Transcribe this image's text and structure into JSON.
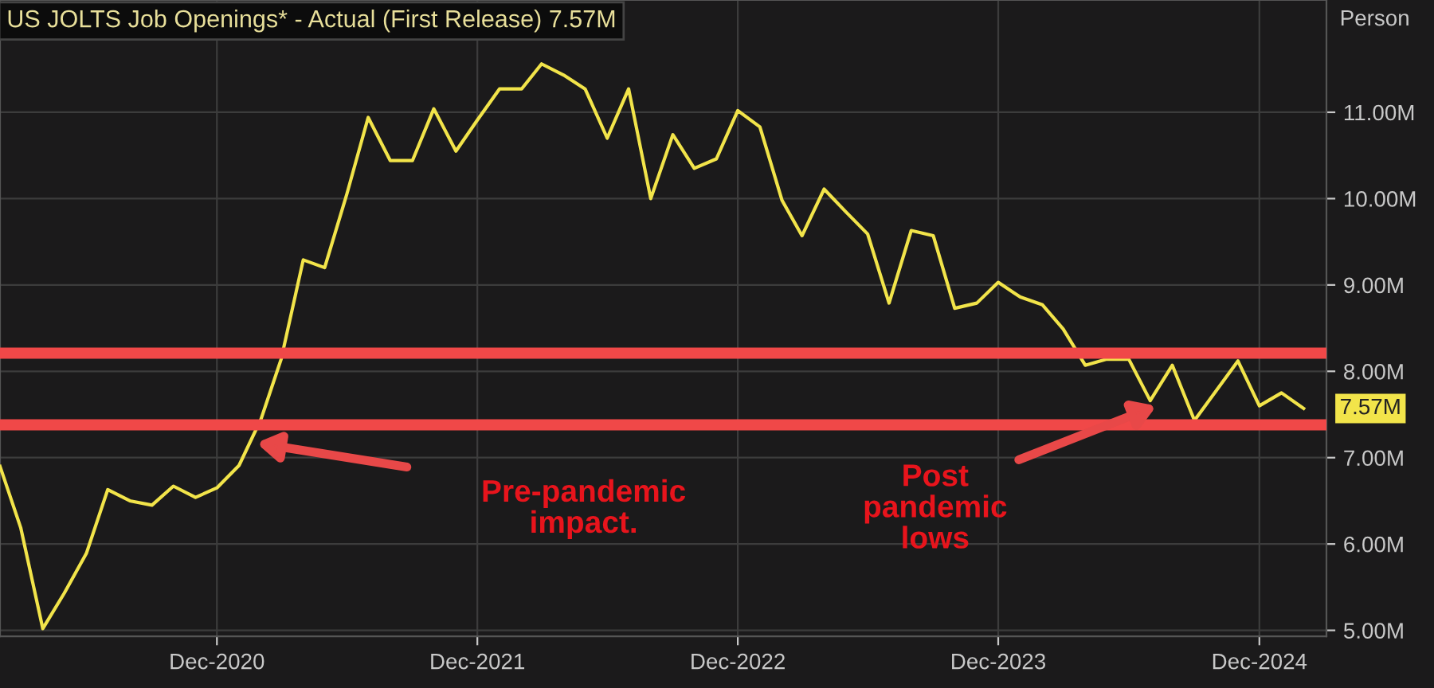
{
  "chart_data": {
    "type": "line",
    "title": "US JOLTS Job Openings* - Actual (First Release) 7.57M",
    "ylabel": "Person",
    "x": [
      "2020-02",
      "2020-03",
      "2020-04",
      "2020-05",
      "2020-06",
      "2020-07",
      "2020-08",
      "2020-09",
      "2020-10",
      "2020-11",
      "2020-12",
      "2021-01",
      "2021-02",
      "2021-03",
      "2021-04",
      "2021-05",
      "2021-06",
      "2021-07",
      "2021-08",
      "2021-09",
      "2021-10",
      "2021-11",
      "2021-12",
      "2022-01",
      "2022-02",
      "2022-03",
      "2022-04",
      "2022-05",
      "2022-06",
      "2022-07",
      "2022-08",
      "2022-09",
      "2022-10",
      "2022-11",
      "2022-12",
      "2023-01",
      "2023-02",
      "2023-03",
      "2023-04",
      "2023-05",
      "2023-06",
      "2023-07",
      "2023-08",
      "2023-09",
      "2023-10",
      "2023-11",
      "2023-12",
      "2024-01",
      "2024-02",
      "2024-03",
      "2024-04",
      "2024-05",
      "2024-06",
      "2024-07",
      "2024-08",
      "2024-09",
      "2024-10",
      "2024-11",
      "2024-12",
      "2025-01",
      "2025-02"
    ],
    "series": [
      {
        "color": "#f2e44a",
        "values": [
          6.9,
          6.19,
          5.02,
          5.43,
          5.89,
          6.63,
          6.5,
          6.45,
          6.67,
          6.54,
          6.65,
          6.91,
          7.45,
          8.14,
          9.29,
          9.2,
          10.05,
          10.94,
          10.44,
          10.44,
          11.04,
          10.55,
          10.91,
          11.27,
          11.27,
          11.56,
          11.43,
          11.27,
          10.7,
          11.27,
          10.0,
          10.74,
          10.35,
          10.46,
          11.02,
          10.83,
          9.98,
          9.57,
          10.11,
          9.85,
          9.59,
          8.79,
          9.63,
          9.57,
          8.73,
          8.79,
          9.03,
          8.86,
          8.77,
          8.49,
          8.07,
          8.14,
          8.14,
          7.66,
          8.07,
          7.43,
          7.77,
          8.12,
          7.6,
          7.75,
          7.57
        ],
        "value_labels": [
          null,
          null,
          null,
          null,
          null,
          null,
          null,
          null,
          null,
          null,
          null,
          null,
          null,
          null,
          null,
          null,
          null,
          null,
          null,
          null,
          null,
          null,
          null,
          null,
          null,
          null,
          null,
          null,
          null,
          null,
          null,
          null,
          null,
          null,
          null,
          null,
          null,
          null,
          null,
          null,
          null,
          null,
          null,
          null,
          null,
          null,
          null,
          null,
          null,
          null,
          null,
          null,
          null,
          null,
          null,
          null,
          null,
          null,
          null,
          null,
          "7.57M"
        ]
      }
    ],
    "xlim": [
      "2020-02-01",
      "2025-03-05"
    ],
    "xticks": [
      {
        "value": "2020-12",
        "label": "Dec-2020"
      },
      {
        "value": "2021-12",
        "label": "Dec-2021"
      },
      {
        "value": "2022-12",
        "label": "Dec-2022"
      },
      {
        "value": "2023-12",
        "label": "Dec-2023"
      },
      {
        "value": "2024-12",
        "label": "Dec-2024"
      }
    ],
    "ylim": [
      4.93,
      12.3
    ],
    "yticks": [
      {
        "value": 5,
        "label": "5.00M"
      },
      {
        "value": 6,
        "label": "6.00M"
      },
      {
        "value": 7,
        "label": "7.00M"
      },
      {
        "value": 8,
        "label": "8.00M"
      },
      {
        "value": 9,
        "label": "9.00M"
      },
      {
        "value": 10,
        "label": "10.00M"
      },
      {
        "value": 11,
        "label": "11.00M"
      }
    ],
    "ref_lines": [
      {
        "axis": "y",
        "value": 8.21,
        "color": "#f04848"
      },
      {
        "axis": "y",
        "value": 7.38,
        "color": "#f04848"
      }
    ],
    "annotations": [
      "Pre-pandemic impact.",
      "Post pandemic lows"
    ],
    "grid": true,
    "legend": false,
    "marker": "none",
    "line_style": "solid"
  }
}
